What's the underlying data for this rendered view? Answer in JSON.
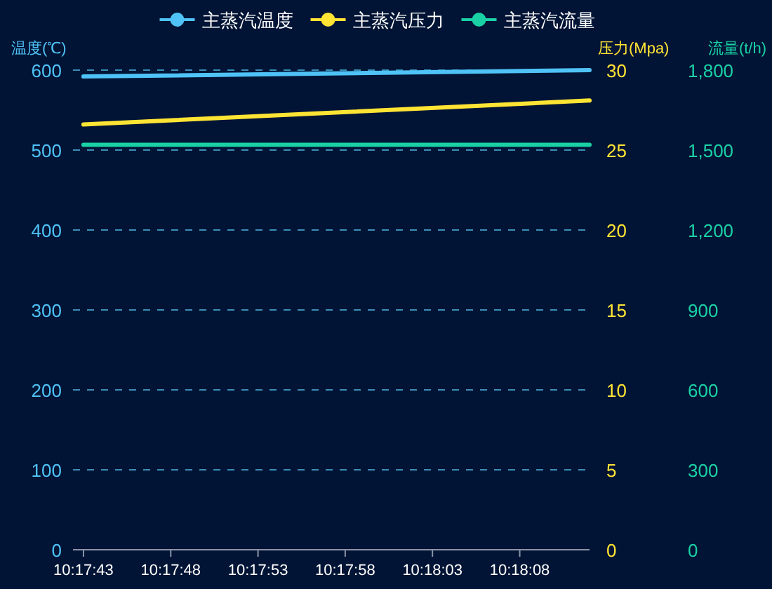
{
  "chart_data": {
    "type": "line",
    "ylabel": "温度(℃)",
    "y2label": "压力(Mpa)",
    "y3label": "流量(t/h)",
    "x": [
      10.295278,
      10.303333
    ],
    "xlim": [
      10.295111,
      10.303333
    ],
    "xticks": [
      {
        "value": 10.295278,
        "label": "10:17:43"
      },
      {
        "value": 10.296667,
        "label": "10:17:48"
      },
      {
        "value": 10.298056,
        "label": "10:17:53"
      },
      {
        "value": 10.299444,
        "label": "10:17:58"
      },
      {
        "value": 10.300833,
        "label": "10:18:03"
      },
      {
        "value": 10.302222,
        "label": "10:18:08"
      }
    ],
    "ylim": [
      0,
      600
    ],
    "yticks": [
      0,
      100,
      200,
      300,
      400,
      500,
      600
    ],
    "y2lim": [
      0,
      30
    ],
    "y2ticks": [
      0,
      5,
      10,
      15,
      20,
      25,
      30
    ],
    "y3lim": [
      0,
      1800
    ],
    "y3ticks": [
      0,
      300,
      600,
      900,
      {
        "value": 1200,
        "label": "1,200"
      },
      {
        "value": 1500,
        "label": "1,500"
      },
      {
        "value": 1800,
        "label": "1,800"
      }
    ],
    "series": [
      {
        "name": "主蒸汽温度",
        "color": "#4fc3f7",
        "values": [
          592,
          600
        ]
      },
      {
        "name": "主蒸汽压力",
        "color": "#ffe434",
        "values": [
          26.6,
          28.1
        ],
        "axis": "y2"
      },
      {
        "name": "主蒸汽流量",
        "color": "#1ad1a6",
        "values": [
          1520,
          1520
        ],
        "axis": "y3"
      }
    ],
    "grid": "y",
    "line_style": "solid",
    "legend": "top"
  }
}
